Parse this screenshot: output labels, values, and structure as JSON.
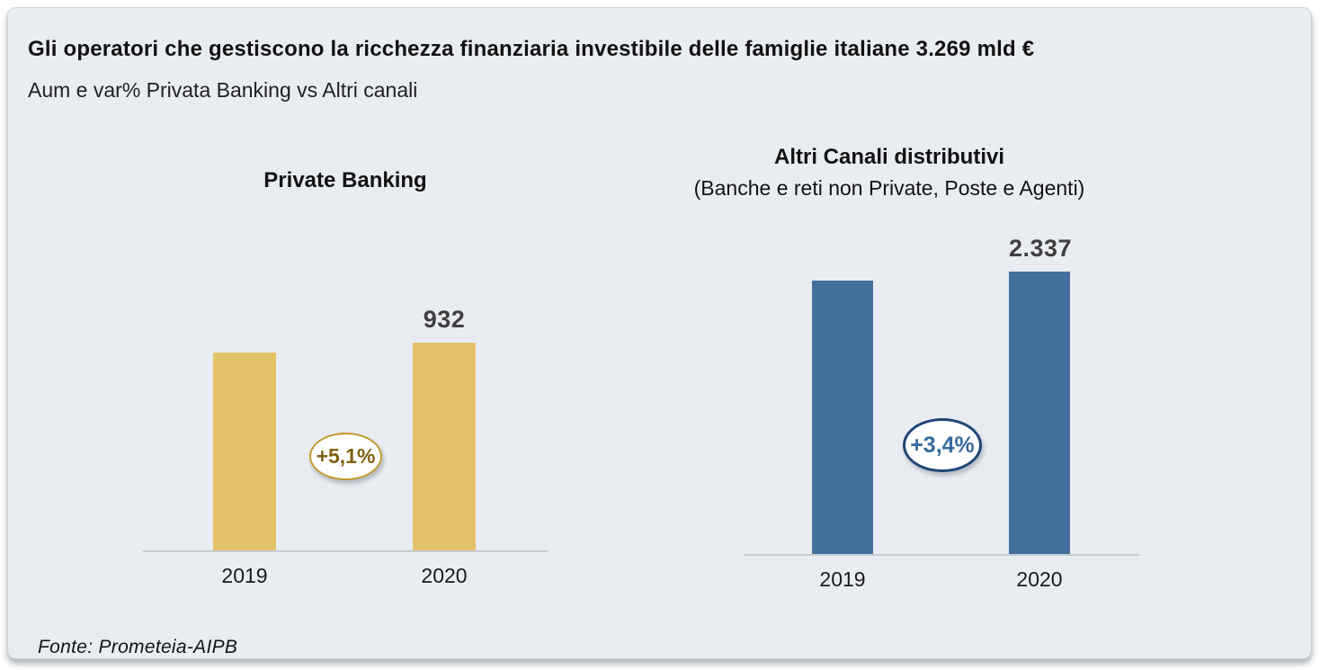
{
  "page": {
    "title": "Gli operatori che gestiscono la ricchezza finanziaria investibile delle famiglie italiane 3.269 mld €",
    "subtitle": "Aum e var% Privata Banking vs Altri canali",
    "footer": "Fonte: Prometeia-AIPB",
    "total_wealth": "3.269 mld €"
  },
  "colors": {
    "card_bg": "#E9EDF2",
    "gold_bar": "#E3C368",
    "blue_bar": "#44709B",
    "gold_badge_border": "#C5992F",
    "gold_badge_text": "#806010",
    "blue_badge_border": "#1F4577",
    "blue_badge_text": "#376A9F",
    "value_label": "#3F3F3F",
    "axis_line": "#C6CBD1"
  },
  "chart_data": [
    {
      "type": "bar",
      "title": "Private Banking",
      "subtitle": "",
      "categories": [
        "2019",
        "2020"
      ],
      "values": [
        887,
        932
      ],
      "value_labels": [
        "",
        "932"
      ],
      "badge": "+5,1%",
      "bar_color": "#E3C368",
      "grid": false,
      "legend": false
    },
    {
      "type": "bar",
      "title": "Altri Canali distributivi",
      "subtitle": "(Banche e reti non Private, Poste e Agenti)",
      "categories": [
        "2019",
        "2020"
      ],
      "values": [
        2260,
        2337
      ],
      "value_labels": [
        "",
        "2.337"
      ],
      "badge": "+3,4%",
      "bar_color": "#44709B",
      "grid": false,
      "legend": false
    }
  ]
}
